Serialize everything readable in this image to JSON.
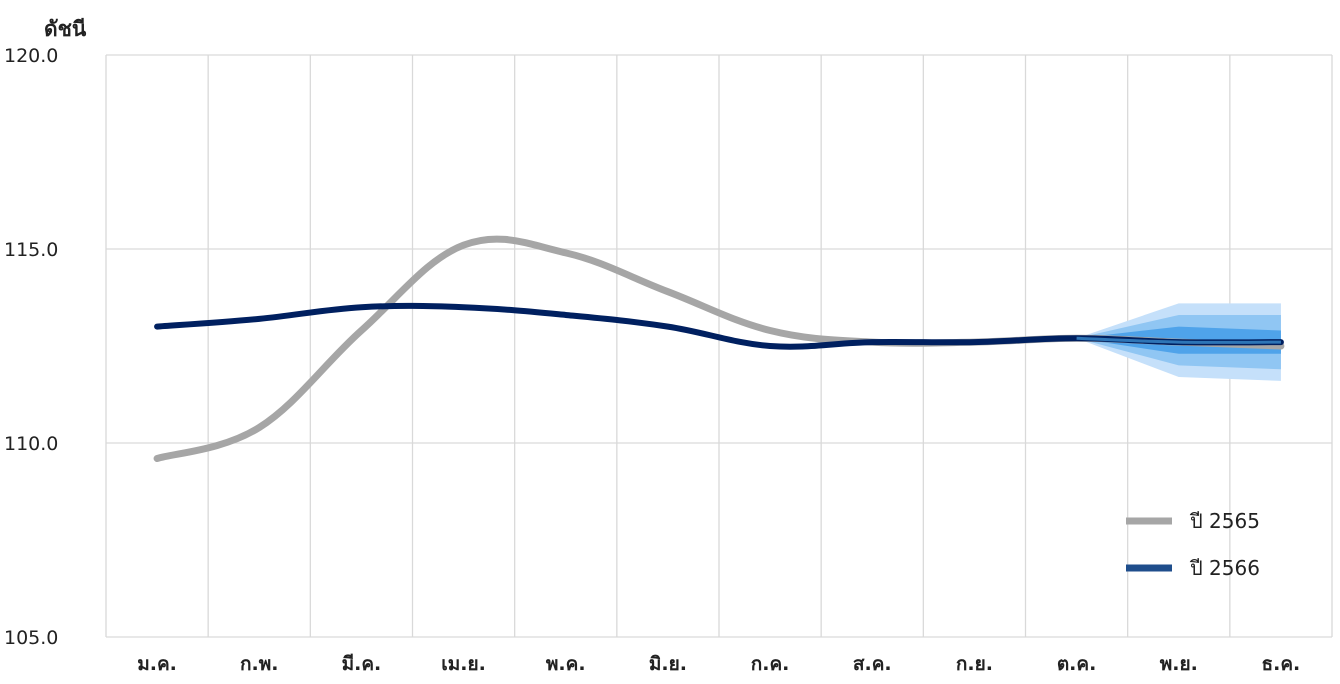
{
  "chart_data": {
    "type": "line",
    "ylabel": "ดัชนี",
    "xlabel": "",
    "ylim": [
      105,
      120
    ],
    "y_ticks": [
      "105.0",
      "110.0",
      "115.0",
      "120.0"
    ],
    "categories": [
      "ม.ค.",
      "ก.พ.",
      "มี.ค.",
      "เม.ย.",
      "พ.ค.",
      "มิ.ย.",
      "ก.ค.",
      "ส.ค.",
      "ก.ย.",
      "ต.ค.",
      "พ.ย.",
      "ธ.ค."
    ],
    "grid": true,
    "legend_position": "bottom-right",
    "series": [
      {
        "name": "ปี 2565",
        "color": "#a6a6a6",
        "values": [
          109.6,
          110.4,
          112.9,
          115.1,
          114.9,
          113.9,
          112.9,
          112.6,
          112.6,
          112.7,
          112.6,
          112.5
        ]
      },
      {
        "name": "ปี 2566",
        "color": "#002060",
        "values": [
          113.0,
          113.2,
          113.5,
          113.5,
          113.3,
          113.0,
          112.5,
          112.6,
          112.6,
          112.7,
          null,
          null
        ],
        "forecast": {
          "color": "#2e75b6",
          "values": [
            112.7,
            112.6,
            112.6
          ],
          "bands": [
            {
              "color": "#c5e0fa",
              "low": [
                112.7,
                111.7,
                111.6
              ],
              "high": [
                112.7,
                113.6,
                113.6
              ]
            },
            {
              "color": "#90c6f3",
              "low": [
                112.7,
                112.0,
                111.9
              ],
              "high": [
                112.7,
                113.3,
                113.3
              ]
            },
            {
              "color": "#4fa3ea",
              "low": [
                112.7,
                112.3,
                112.3
              ],
              "high": [
                112.7,
                113.0,
                112.9
              ]
            }
          ],
          "start_index": 9
        }
      }
    ]
  }
}
